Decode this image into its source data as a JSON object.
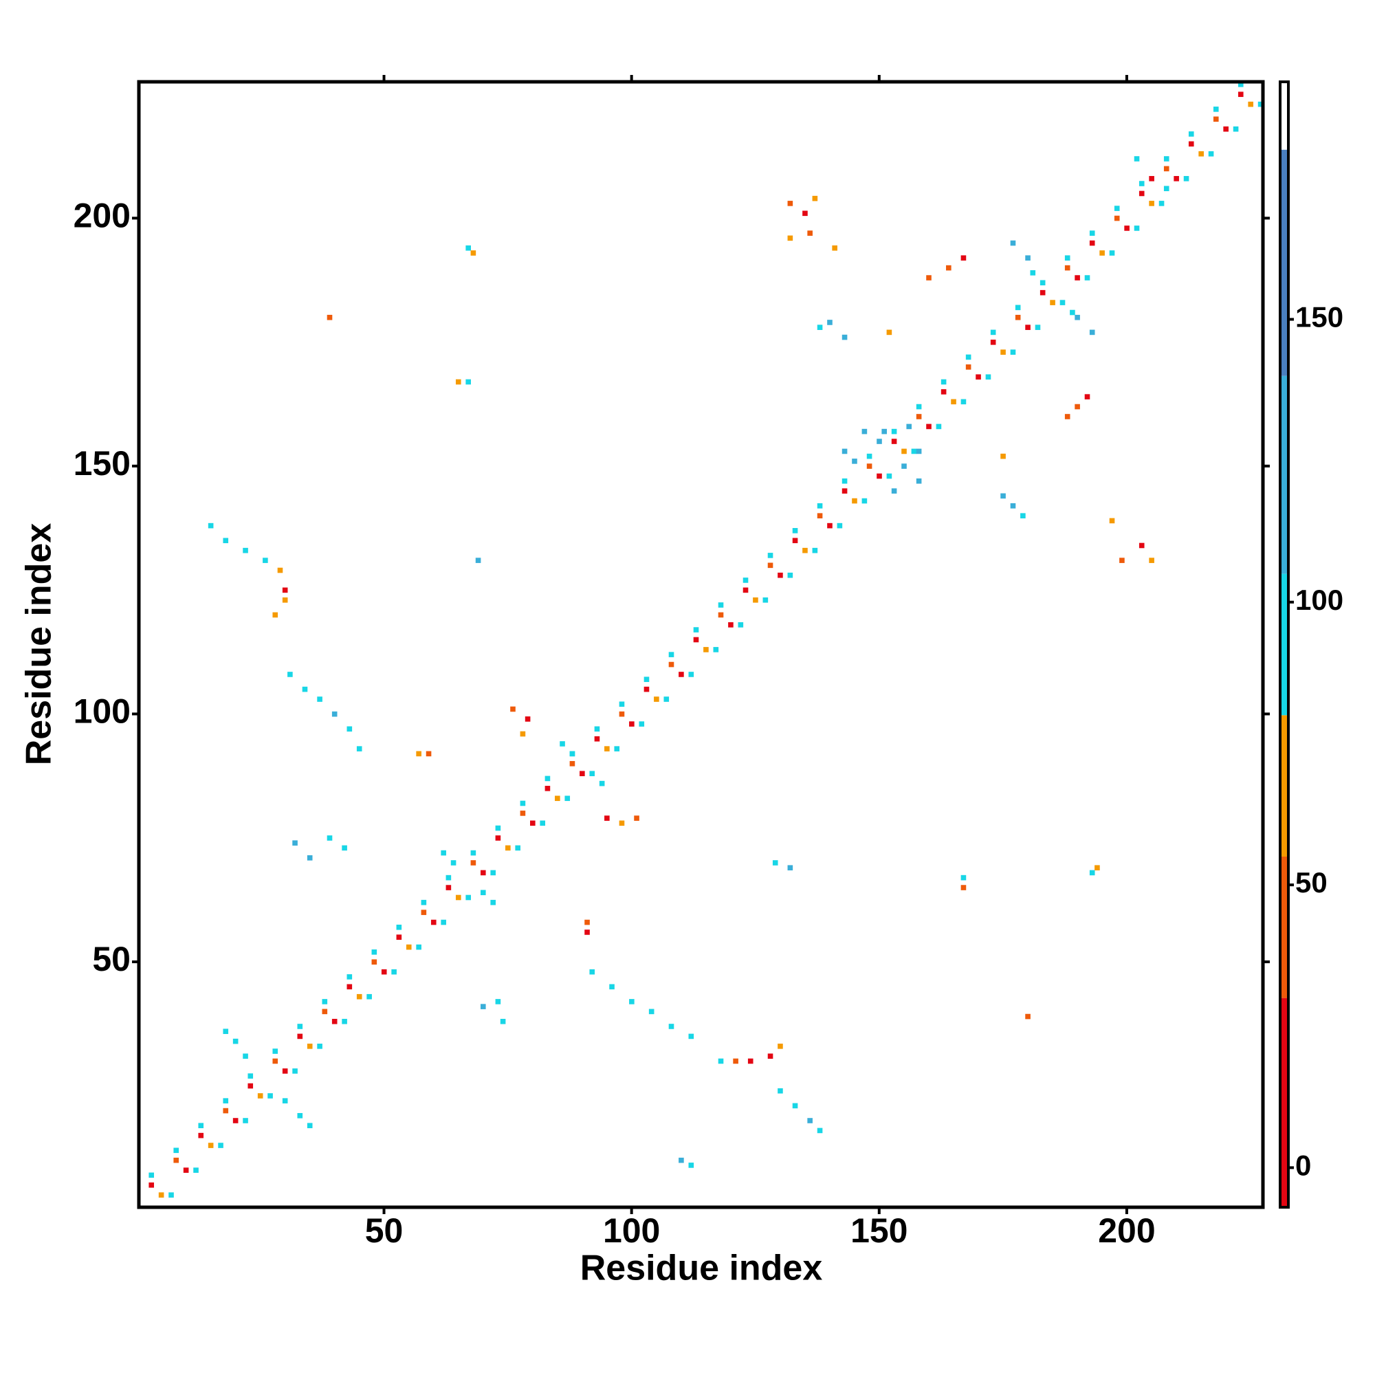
{
  "chart_data": {
    "type": "heatmap",
    "x_label": "Residue index",
    "y_label": "Residue index",
    "xlim": [
      0.5,
      227.5
    ],
    "ylim": [
      0.5,
      227.5
    ],
    "xticks": [
      50,
      100,
      150,
      200
    ],
    "yticks": [
      50,
      100,
      150,
      200
    ],
    "clim": [
      -7,
      192
    ],
    "cticks": [
      0,
      50,
      100,
      150
    ],
    "colorscale": [
      [
        -7,
        "#e30613"
      ],
      [
        30,
        "#ee5a0a"
      ],
      [
        55,
        "#f59a00"
      ],
      [
        80,
        "#18d6e6"
      ],
      [
        105,
        "#3aaed8"
      ],
      [
        140,
        "#4a7fbf"
      ],
      [
        180,
        "#ffffff"
      ]
    ],
    "cells": [
      [
        3,
        5,
        15
      ],
      [
        5,
        3,
        65
      ],
      [
        3,
        7,
        90
      ],
      [
        7,
        3,
        90
      ],
      [
        8,
        10,
        40
      ],
      [
        10,
        8,
        15
      ],
      [
        8,
        12,
        90
      ],
      [
        12,
        8,
        90
      ],
      [
        13,
        15,
        15
      ],
      [
        15,
        13,
        65
      ],
      [
        13,
        17,
        90
      ],
      [
        17,
        13,
        90
      ],
      [
        18,
        20,
        40
      ],
      [
        20,
        18,
        15
      ],
      [
        18,
        22,
        90
      ],
      [
        22,
        18,
        90
      ],
      [
        23,
        25,
        15
      ],
      [
        25,
        23,
        65
      ],
      [
        23,
        27,
        90
      ],
      [
        27,
        23,
        90
      ],
      [
        28,
        30,
        40
      ],
      [
        30,
        28,
        15
      ],
      [
        28,
        32,
        90
      ],
      [
        32,
        28,
        90
      ],
      [
        33,
        35,
        15
      ],
      [
        35,
        33,
        65
      ],
      [
        33,
        37,
        90
      ],
      [
        37,
        33,
        90
      ],
      [
        38,
        40,
        40
      ],
      [
        40,
        38,
        15
      ],
      [
        38,
        42,
        90
      ],
      [
        42,
        38,
        90
      ],
      [
        43,
        45,
        15
      ],
      [
        45,
        43,
        65
      ],
      [
        43,
        47,
        90
      ],
      [
        47,
        43,
        90
      ],
      [
        48,
        50,
        40
      ],
      [
        50,
        48,
        15
      ],
      [
        48,
        52,
        90
      ],
      [
        52,
        48,
        90
      ],
      [
        53,
        55,
        15
      ],
      [
        55,
        53,
        65
      ],
      [
        53,
        57,
        90
      ],
      [
        57,
        53,
        90
      ],
      [
        58,
        60,
        40
      ],
      [
        60,
        58,
        15
      ],
      [
        58,
        62,
        90
      ],
      [
        62,
        58,
        90
      ],
      [
        63,
        65,
        15
      ],
      [
        65,
        63,
        65
      ],
      [
        63,
        67,
        90
      ],
      [
        67,
        63,
        90
      ],
      [
        68,
        70,
        40
      ],
      [
        70,
        68,
        15
      ],
      [
        68,
        72,
        90
      ],
      [
        72,
        68,
        90
      ],
      [
        73,
        75,
        15
      ],
      [
        75,
        73,
        65
      ],
      [
        73,
        77,
        90
      ],
      [
        77,
        73,
        90
      ],
      [
        78,
        80,
        40
      ],
      [
        80,
        78,
        15
      ],
      [
        78,
        82,
        90
      ],
      [
        82,
        78,
        90
      ],
      [
        83,
        85,
        15
      ],
      [
        85,
        83,
        65
      ],
      [
        83,
        87,
        90
      ],
      [
        87,
        83,
        90
      ],
      [
        88,
        90,
        40
      ],
      [
        90,
        88,
        15
      ],
      [
        88,
        92,
        90
      ],
      [
        92,
        88,
        90
      ],
      [
        93,
        95,
        15
      ],
      [
        95,
        93,
        65
      ],
      [
        93,
        97,
        90
      ],
      [
        97,
        93,
        90
      ],
      [
        98,
        100,
        40
      ],
      [
        100,
        98,
        15
      ],
      [
        98,
        102,
        90
      ],
      [
        102,
        98,
        90
      ],
      [
        103,
        105,
        15
      ],
      [
        105,
        103,
        65
      ],
      [
        103,
        107,
        90
      ],
      [
        107,
        103,
        90
      ],
      [
        108,
        110,
        40
      ],
      [
        110,
        108,
        15
      ],
      [
        108,
        112,
        90
      ],
      [
        112,
        108,
        90
      ],
      [
        113,
        115,
        15
      ],
      [
        115,
        113,
        65
      ],
      [
        113,
        117,
        90
      ],
      [
        117,
        113,
        90
      ],
      [
        118,
        120,
        40
      ],
      [
        120,
        118,
        15
      ],
      [
        118,
        122,
        90
      ],
      [
        122,
        118,
        90
      ],
      [
        123,
        125,
        15
      ],
      [
        125,
        123,
        65
      ],
      [
        123,
        127,
        90
      ],
      [
        127,
        123,
        90
      ],
      [
        128,
        130,
        40
      ],
      [
        130,
        128,
        15
      ],
      [
        128,
        132,
        90
      ],
      [
        132,
        128,
        90
      ],
      [
        133,
        135,
        15
      ],
      [
        135,
        133,
        65
      ],
      [
        133,
        137,
        90
      ],
      [
        137,
        133,
        90
      ],
      [
        138,
        140,
        40
      ],
      [
        140,
        138,
        15
      ],
      [
        138,
        142,
        90
      ],
      [
        142,
        138,
        90
      ],
      [
        143,
        145,
        15
      ],
      [
        145,
        143,
        65
      ],
      [
        143,
        147,
        90
      ],
      [
        147,
        143,
        90
      ],
      [
        148,
        150,
        40
      ],
      [
        150,
        148,
        15
      ],
      [
        148,
        152,
        90
      ],
      [
        152,
        148,
        90
      ],
      [
        153,
        155,
        15
      ],
      [
        155,
        153,
        65
      ],
      [
        153,
        157,
        90
      ],
      [
        157,
        153,
        90
      ],
      [
        158,
        160,
        40
      ],
      [
        160,
        158,
        15
      ],
      [
        158,
        162,
        90
      ],
      [
        162,
        158,
        90
      ],
      [
        163,
        165,
        15
      ],
      [
        165,
        163,
        65
      ],
      [
        163,
        167,
        90
      ],
      [
        167,
        163,
        90
      ],
      [
        168,
        170,
        40
      ],
      [
        170,
        168,
        15
      ],
      [
        168,
        172,
        90
      ],
      [
        172,
        168,
        90
      ],
      [
        173,
        175,
        15
      ],
      [
        175,
        173,
        65
      ],
      [
        173,
        177,
        90
      ],
      [
        177,
        173,
        90
      ],
      [
        178,
        180,
        40
      ],
      [
        180,
        178,
        15
      ],
      [
        178,
        182,
        90
      ],
      [
        182,
        178,
        90
      ],
      [
        183,
        185,
        15
      ],
      [
        185,
        183,
        65
      ],
      [
        183,
        187,
        90
      ],
      [
        187,
        183,
        90
      ],
      [
        188,
        190,
        40
      ],
      [
        190,
        188,
        15
      ],
      [
        188,
        192,
        90
      ],
      [
        192,
        188,
        90
      ],
      [
        193,
        195,
        15
      ],
      [
        195,
        193,
        65
      ],
      [
        193,
        197,
        90
      ],
      [
        197,
        193,
        90
      ],
      [
        198,
        200,
        40
      ],
      [
        200,
        198,
        15
      ],
      [
        198,
        202,
        90
      ],
      [
        202,
        198,
        90
      ],
      [
        203,
        205,
        15
      ],
      [
        205,
        203,
        65
      ],
      [
        203,
        207,
        90
      ],
      [
        207,
        203,
        90
      ],
      [
        208,
        210,
        40
      ],
      [
        210,
        208,
        15
      ],
      [
        208,
        212,
        90
      ],
      [
        212,
        208,
        90
      ],
      [
        213,
        215,
        15
      ],
      [
        215,
        213,
        65
      ],
      [
        213,
        217,
        90
      ],
      [
        217,
        213,
        90
      ],
      [
        218,
        220,
        40
      ],
      [
        220,
        218,
        15
      ],
      [
        218,
        222,
        90
      ],
      [
        222,
        218,
        90
      ],
      [
        223,
        225,
        15
      ],
      [
        225,
        223,
        65
      ],
      [
        223,
        227,
        90
      ],
      [
        227,
        223,
        90
      ],
      [
        20,
        34,
        95
      ],
      [
        22,
        31,
        95
      ],
      [
        30,
        22,
        95
      ],
      [
        33,
        19,
        95
      ],
      [
        35,
        17,
        90
      ],
      [
        18,
        36,
        95
      ],
      [
        15,
        138,
        95
      ],
      [
        18,
        135,
        95
      ],
      [
        22,
        133,
        95
      ],
      [
        26,
        131,
        95
      ],
      [
        29,
        129,
        65
      ],
      [
        30,
        125,
        15
      ],
      [
        28,
        120,
        65
      ],
      [
        30,
        123,
        65
      ],
      [
        31,
        108,
        95
      ],
      [
        34,
        105,
        95
      ],
      [
        37,
        103,
        95
      ],
      [
        40,
        100,
        130
      ],
      [
        43,
        97,
        95
      ],
      [
        45,
        93,
        95
      ],
      [
        67,
        194,
        95
      ],
      [
        68,
        193,
        65
      ],
      [
        39,
        180,
        40
      ],
      [
        67,
        167,
        95
      ],
      [
        65,
        167,
        65
      ],
      [
        69,
        131,
        130
      ],
      [
        57,
        92,
        65
      ],
      [
        59,
        92,
        40
      ],
      [
        76,
        101,
        40
      ],
      [
        79,
        99,
        15
      ],
      [
        78,
        96,
        65
      ],
      [
        32,
        74,
        130
      ],
      [
        35,
        71,
        130
      ],
      [
        39,
        75,
        95
      ],
      [
        42,
        73,
        95
      ],
      [
        62,
        72,
        95
      ],
      [
        64,
        70,
        95
      ],
      [
        70,
        64,
        95
      ],
      [
        72,
        62,
        95
      ],
      [
        86,
        94,
        95
      ],
      [
        94,
        86,
        95
      ],
      [
        88,
        92,
        95
      ],
      [
        95,
        79,
        15
      ],
      [
        98,
        78,
        65
      ],
      [
        101,
        79,
        40
      ],
      [
        129,
        70,
        95
      ],
      [
        132,
        69,
        130
      ],
      [
        91,
        58,
        40
      ],
      [
        91,
        56,
        15
      ],
      [
        92,
        48,
        95
      ],
      [
        96,
        45,
        95
      ],
      [
        100,
        42,
        95
      ],
      [
        104,
        40,
        95
      ],
      [
        108,
        37,
        95
      ],
      [
        112,
        35,
        95
      ],
      [
        70,
        41,
        130
      ],
      [
        74,
        38,
        95
      ],
      [
        73,
        42,
        95
      ],
      [
        118,
        30,
        95
      ],
      [
        121,
        30,
        40
      ],
      [
        124,
        30,
        15
      ],
      [
        128,
        31,
        15
      ],
      [
        130,
        33,
        65
      ],
      [
        130,
        24,
        95
      ],
      [
        133,
        21,
        95
      ],
      [
        136,
        18,
        130
      ],
      [
        138,
        16,
        95
      ],
      [
        112,
        9,
        95
      ],
      [
        110,
        10,
        130
      ],
      [
        180,
        39,
        40
      ],
      [
        167,
        67,
        95
      ],
      [
        167,
        65,
        40
      ],
      [
        193,
        68,
        95
      ],
      [
        194,
        69,
        65
      ],
      [
        199,
        131,
        40
      ],
      [
        203,
        134,
        15
      ],
      [
        205,
        131,
        65
      ],
      [
        197,
        139,
        65
      ],
      [
        175,
        144,
        130
      ],
      [
        177,
        142,
        130
      ],
      [
        179,
        140,
        95
      ],
      [
        175,
        152,
        65
      ],
      [
        188,
        160,
        40
      ],
      [
        190,
        162,
        40
      ],
      [
        192,
        164,
        15
      ],
      [
        143,
        153,
        130
      ],
      [
        145,
        151,
        130
      ],
      [
        153,
        145,
        130
      ],
      [
        151,
        157,
        130
      ],
      [
        156,
        158,
        130
      ],
      [
        158,
        153,
        130
      ],
      [
        147,
        157,
        130
      ],
      [
        150,
        155,
        130
      ],
      [
        155,
        150,
        130
      ],
      [
        158,
        147,
        130
      ],
      [
        140,
        179,
        130
      ],
      [
        143,
        176,
        130
      ],
      [
        138,
        178,
        95
      ],
      [
        152,
        177,
        65
      ],
      [
        160,
        188,
        40
      ],
      [
        164,
        190,
        40
      ],
      [
        167,
        192,
        15
      ],
      [
        177,
        195,
        130
      ],
      [
        180,
        192,
        130
      ],
      [
        190,
        180,
        130
      ],
      [
        193,
        177,
        130
      ],
      [
        181,
        189,
        95
      ],
      [
        189,
        181,
        95
      ],
      [
        132,
        203,
        40
      ],
      [
        135,
        201,
        15
      ],
      [
        137,
        204,
        65
      ],
      [
        132,
        196,
        65
      ],
      [
        136,
        197,
        40
      ],
      [
        141,
        194,
        65
      ],
      [
        202,
        212,
        95
      ],
      [
        208,
        206,
        95
      ],
      [
        205,
        208,
        15
      ]
    ]
  }
}
